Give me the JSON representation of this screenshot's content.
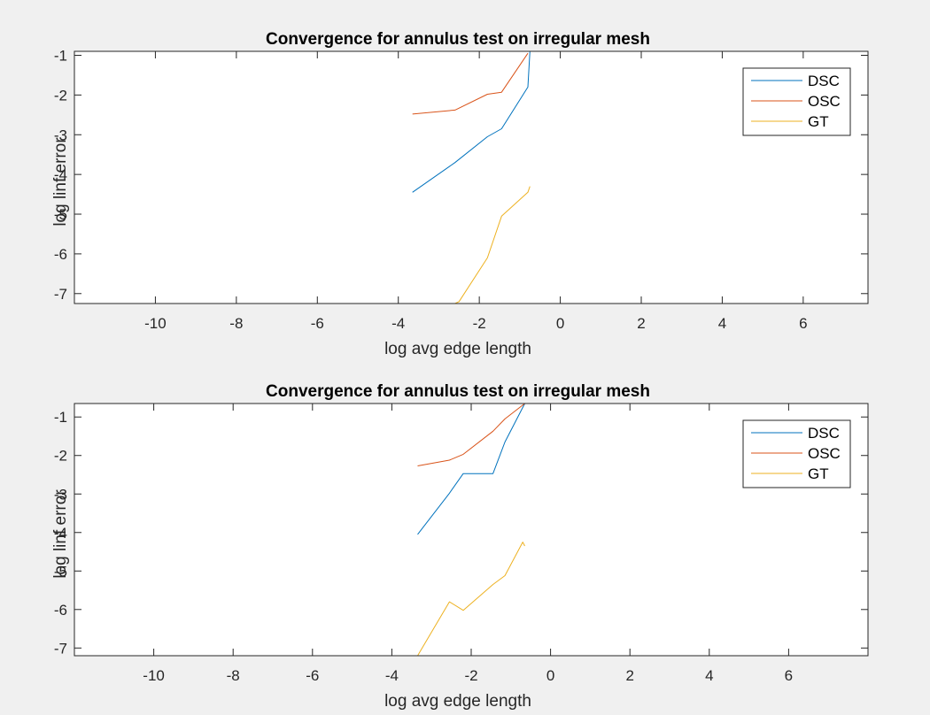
{
  "chart_data": [
    {
      "type": "line",
      "title": "Convergence for annulus test on irregular mesh",
      "xlabel": "log avg edge length",
      "ylabel": "log linf error",
      "xlim": [
        -12,
        7.6
      ],
      "ylim": [
        -7.25,
        -0.9
      ],
      "xticks": [
        -10,
        -8,
        -6,
        -4,
        -2,
        0,
        2,
        4,
        6
      ],
      "yticks": [
        -1,
        -2,
        -3,
        -4,
        -5,
        -6,
        -7
      ],
      "grid": false,
      "legend_position": "top-right",
      "series": [
        {
          "name": "DSC",
          "color": "#0072BD",
          "x": [
            -3.65,
            -2.6,
            -1.8,
            -1.45,
            -0.8,
            -0.75
          ],
          "y": [
            -4.45,
            -3.7,
            -3.05,
            -2.85,
            -1.8,
            -0.9
          ]
        },
        {
          "name": "OSC",
          "color": "#D95319",
          "x": [
            -3.65,
            -2.6,
            -1.8,
            -1.45,
            -0.8
          ],
          "y": [
            -2.48,
            -2.38,
            -1.98,
            -1.93,
            -0.95
          ]
        },
        {
          "name": "GT",
          "color": "#EDB120",
          "x": [
            -3.65,
            -2.6,
            -2.5,
            -1.8,
            -1.45,
            -0.8,
            -0.75
          ],
          "y": [
            -7.25,
            -7.25,
            -7.2,
            -6.1,
            -5.05,
            -4.45,
            -4.3
          ]
        }
      ]
    },
    {
      "type": "line",
      "title": "Convergence for annulus test on irregular mesh",
      "xlabel": "log avg edge length",
      "ylabel": "log linf error",
      "xlim": [
        -12,
        8.0
      ],
      "ylim": [
        -7.2,
        -0.65
      ],
      "xticks": [
        -10,
        -8,
        -6,
        -4,
        -2,
        0,
        2,
        4,
        6
      ],
      "yticks": [
        -1,
        -2,
        -3,
        -4,
        -5,
        -6,
        -7
      ],
      "grid": false,
      "legend_position": "top-right",
      "series": [
        {
          "name": "DSC",
          "color": "#0072BD",
          "x": [
            -3.35,
            -2.55,
            -2.2,
            -1.45,
            -1.15,
            -0.65
          ],
          "y": [
            -4.05,
            -2.98,
            -2.47,
            -2.47,
            -1.65,
            -0.65
          ]
        },
        {
          "name": "OSC",
          "color": "#D95319",
          "x": [
            -3.35,
            -2.55,
            -2.2,
            -1.45,
            -1.15,
            -0.65
          ],
          "y": [
            -2.27,
            -2.12,
            -1.97,
            -1.37,
            -1.05,
            -0.65
          ]
        },
        {
          "name": "GT",
          "color": "#EDB120",
          "x": [
            -3.35,
            -2.55,
            -2.2,
            -1.45,
            -1.15,
            -0.7,
            -0.65
          ],
          "y": [
            -7.2,
            -5.8,
            -6.02,
            -5.35,
            -5.12,
            -4.25,
            -4.35
          ]
        }
      ]
    }
  ]
}
